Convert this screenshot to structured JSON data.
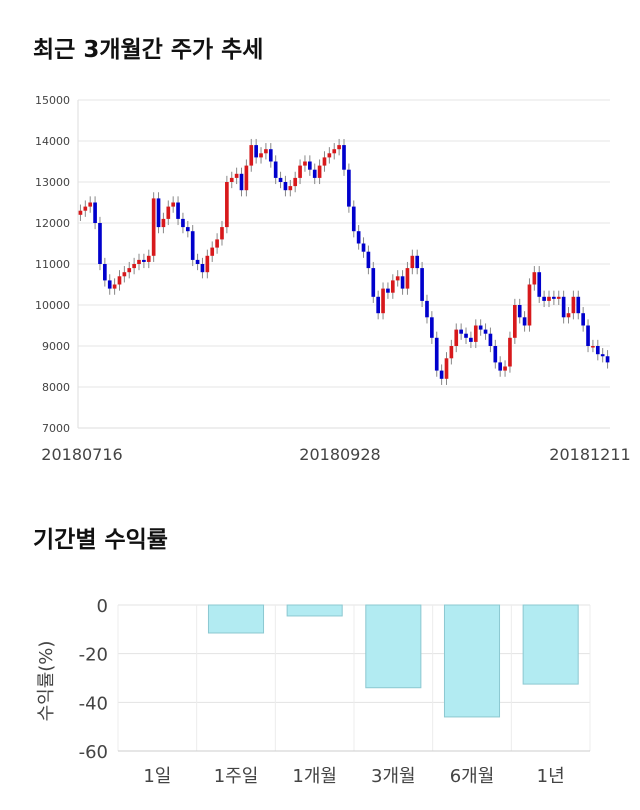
{
  "section_titles": {
    "price_trend": "최근 3개월간 주가 추세",
    "returns": "기간별 수익률"
  },
  "chart_data": [
    {
      "type": "candlestick",
      "title": "최근 3개월간 주가 추세",
      "ylim": [
        7000,
        15000
      ],
      "y_ticks": [
        "15000",
        "14000",
        "13000",
        "12000",
        "11000",
        "10000",
        "9000",
        "8000",
        "7000"
      ],
      "x_tick_labels": [
        "20180716",
        "20180928",
        "20181211"
      ],
      "grid": true,
      "colors": {
        "up": "#d7191c",
        "down": "#0000cc",
        "wick": "#888888"
      },
      "close": [
        12300,
        12400,
        12500,
        12000,
        11000,
        10600,
        10400,
        10500,
        10700,
        10800,
        10900,
        11000,
        11100,
        11050,
        11200,
        12600,
        11900,
        12100,
        12400,
        12500,
        12100,
        11900,
        11800,
        11100,
        11000,
        10800,
        11200,
        11400,
        11600,
        11900,
        13000,
        13100,
        13200,
        12800,
        13400,
        13900,
        13600,
        13700,
        13800,
        13500,
        13100,
        13000,
        12800,
        12900,
        13100,
        13400,
        13500,
        13300,
        13100,
        13400,
        13600,
        13700,
        13800,
        13900,
        13300,
        12400,
        11800,
        11500,
        11300,
        10900,
        10200,
        9800,
        10400,
        10300,
        10600,
        10700,
        10400,
        10900,
        11200,
        10900,
        10100,
        9700,
        9200,
        8400,
        8200,
        8700,
        9000,
        9400,
        9300,
        9200,
        9100,
        9500,
        9400,
        9300,
        9000,
        8600,
        8400,
        8500,
        9200,
        10000,
        9700,
        9500,
        10500,
        10800,
        10200,
        10100,
        10200,
        10150,
        10200,
        9700,
        9800,
        10200,
        9800,
        9500,
        9000,
        9000,
        8800,
        8750,
        8600
      ],
      "open": [
        12200,
        12300,
        12400,
        12500,
        12000,
        11000,
        10600,
        10400,
        10500,
        10700,
        10800,
        10900,
        11000,
        11100,
        11050,
        11200,
        12600,
        11900,
        12100,
        12400,
        12500,
        12100,
        11900,
        11800,
        11100,
        11000,
        10800,
        11200,
        11400,
        11600,
        11900,
        13000,
        13100,
        13200,
        12800,
        13400,
        13900,
        13600,
        13700,
        13800,
        13500,
        13100,
        13000,
        12800,
        12900,
        13100,
        13400,
        13500,
        13300,
        13100,
        13400,
        13600,
        13700,
        13800,
        13900,
        13300,
        12400,
        11800,
        11500,
        11300,
        10900,
        10200,
        9800,
        10400,
        10300,
        10600,
        10700,
        10400,
        10900,
        11200,
        10900,
        10100,
        9700,
        9200,
        8400,
        8200,
        8700,
        9000,
        9400,
        9300,
        9200,
        9100,
        9500,
        9400,
        9300,
        9000,
        8600,
        8400,
        8500,
        9200,
        10000,
        9700,
        9500,
        10500,
        10800,
        10200,
        10100,
        10200,
        10150,
        10200,
        9700,
        9800,
        10200,
        9800,
        9500,
        9000,
        9000,
        8800,
        8750
      ]
    },
    {
      "type": "bar",
      "categories": [
        "1일",
        "1주일",
        "1개월",
        "3개월",
        "6개월",
        "1년"
      ],
      "values": [
        0,
        -11.5,
        -4.5,
        -34,
        -46,
        -32.5
      ],
      "ylabel": "수익률(%)",
      "ylim": [
        -60,
        0
      ],
      "y_ticks": [
        "0",
        "-20",
        "-40",
        "-60"
      ],
      "grid": true,
      "colors": {
        "fill": "#b2ebf2",
        "stroke": "#8cc8d0"
      }
    }
  ]
}
